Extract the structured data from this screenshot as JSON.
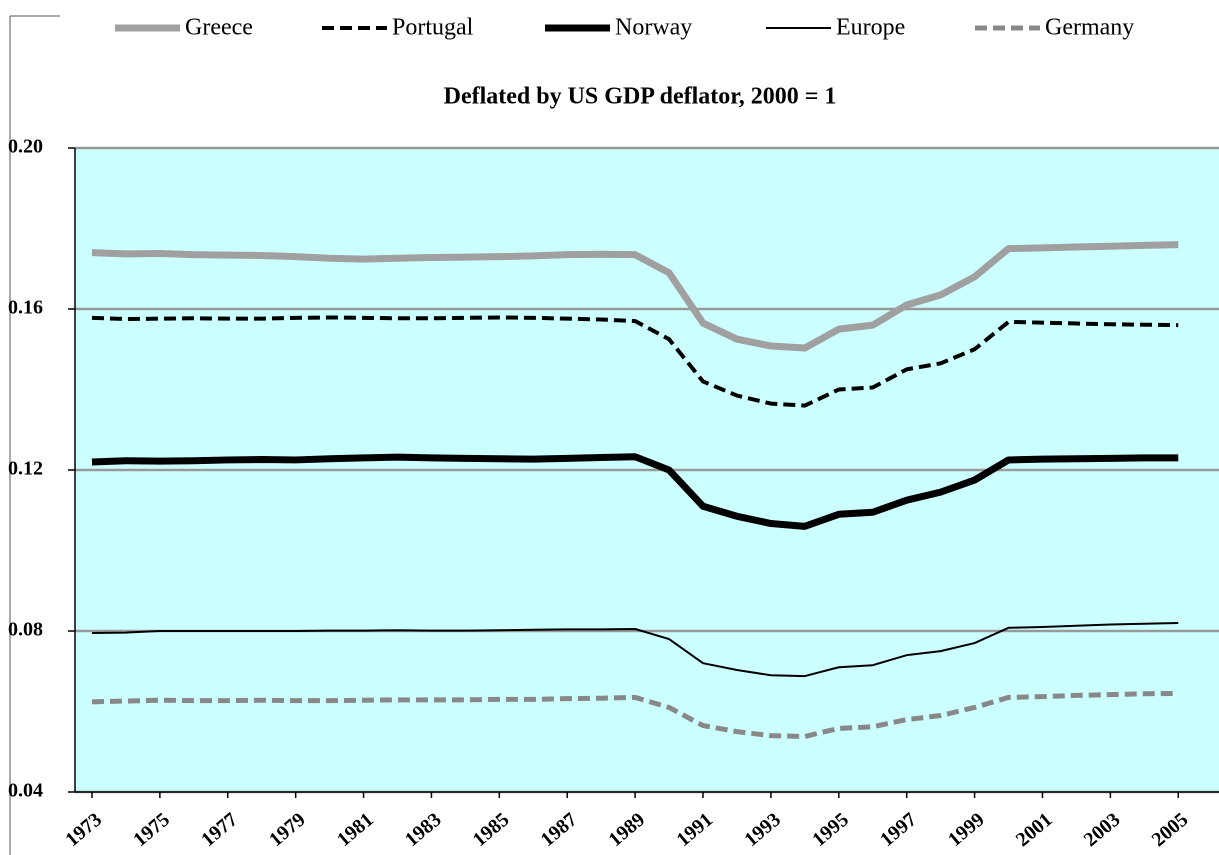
{
  "chart_data": {
    "type": "line",
    "title": "Deflated by US GDP deflator, 2000 = 1",
    "x": [
      1973,
      1974,
      1975,
      1976,
      1977,
      1978,
      1979,
      1980,
      1981,
      1982,
      1983,
      1984,
      1985,
      1986,
      1987,
      1988,
      1989,
      1990,
      1991,
      1992,
      1993,
      1994,
      1995,
      1996,
      1997,
      1998,
      1999,
      2000,
      2001,
      2002,
      2003,
      2004,
      2005
    ],
    "xlim": [
      1972.5,
      2006.2
    ],
    "xticks": [
      1973,
      1975,
      1977,
      1979,
      1981,
      1983,
      1985,
      1987,
      1989,
      1991,
      1993,
      1995,
      1997,
      1999,
      2001,
      2003,
      2005
    ],
    "ylim": [
      0.04,
      0.2
    ],
    "yticks": [
      0.04,
      0.08,
      0.12,
      0.16,
      {
        "value": 0.2,
        "label": "0.20"
      }
    ],
    "grid": true,
    "legend": "top",
    "series": [
      {
        "name": "Greece",
        "color": "#a0a0a0",
        "style": "solid",
        "width": 7,
        "values": [
          0.174,
          0.1737,
          0.1738,
          0.1735,
          0.1734,
          0.1733,
          0.173,
          0.1726,
          0.1724,
          0.1726,
          0.1728,
          0.1729,
          0.173,
          0.1732,
          0.1735,
          0.1736,
          0.1735,
          0.169,
          0.1565,
          0.1525,
          0.1508,
          0.1503,
          0.155,
          0.156,
          0.161,
          0.1635,
          0.168,
          0.175,
          0.1752,
          0.1754,
          0.1756,
          0.1758,
          0.176
        ]
      },
      {
        "name": "Portugal",
        "color": "#000000",
        "style": "dashed",
        "width": 4,
        "values": [
          0.1578,
          0.1575,
          0.1576,
          0.1577,
          0.1576,
          0.1576,
          0.1578,
          0.1579,
          0.1578,
          0.1577,
          0.1577,
          0.1578,
          0.1579,
          0.1578,
          0.1576,
          0.1574,
          0.157,
          0.1525,
          0.142,
          0.1385,
          0.1365,
          0.136,
          0.14,
          0.1405,
          0.145,
          0.1465,
          0.15,
          0.1568,
          0.1566,
          0.1564,
          0.1562,
          0.1561,
          0.156
        ]
      },
      {
        "name": "Norway",
        "color": "#000000",
        "style": "solid",
        "width": 7,
        "values": [
          0.122,
          0.1223,
          0.1222,
          0.1223,
          0.1225,
          0.1226,
          0.1225,
          0.1228,
          0.123,
          0.1232,
          0.123,
          0.1229,
          0.1228,
          0.1227,
          0.1229,
          0.1231,
          0.1233,
          0.12,
          0.111,
          0.1085,
          0.1067,
          0.106,
          0.109,
          0.1095,
          0.1125,
          0.1145,
          0.1175,
          0.1225,
          0.1227,
          0.1228,
          0.1229,
          0.123,
          0.123
        ]
      },
      {
        "name": "Europe",
        "color": "#000000",
        "style": "solid",
        "width": 2,
        "values": [
          0.0795,
          0.0796,
          0.08,
          0.08,
          0.08,
          0.08,
          0.08,
          0.0801,
          0.0801,
          0.0802,
          0.0801,
          0.0801,
          0.0802,
          0.0803,
          0.0804,
          0.0804,
          0.0805,
          0.078,
          0.072,
          0.0703,
          0.069,
          0.0688,
          0.071,
          0.0715,
          0.074,
          0.075,
          0.077,
          0.0808,
          0.081,
          0.0813,
          0.0816,
          0.0818,
          0.082
        ]
      },
      {
        "name": "Germany",
        "color": "#888888",
        "style": "dashed",
        "width": 5,
        "values": [
          0.0624,
          0.0626,
          0.0628,
          0.0627,
          0.0627,
          0.0628,
          0.0627,
          0.0627,
          0.0628,
          0.0629,
          0.0629,
          0.0629,
          0.063,
          0.063,
          0.0632,
          0.0633,
          0.0635,
          0.061,
          0.0565,
          0.055,
          0.054,
          0.0538,
          0.0558,
          0.0562,
          0.058,
          0.059,
          0.061,
          0.0635,
          0.0637,
          0.064,
          0.0642,
          0.0644,
          0.0645
        ]
      }
    ]
  }
}
